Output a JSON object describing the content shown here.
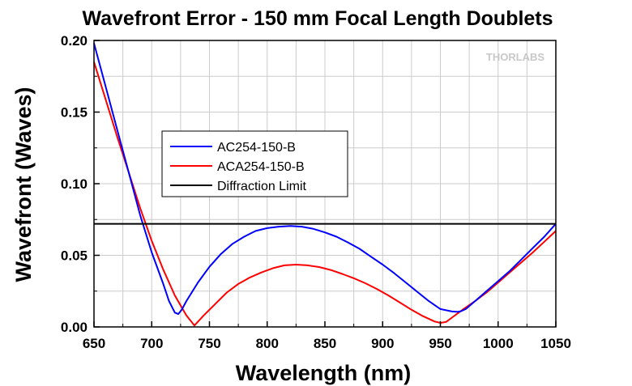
{
  "chart_data": {
    "type": "line",
    "title": "Wavefront Error - 150 mm Focal Length Doublets",
    "xlabel": "Wavelength (nm)",
    "ylabel": "Wavefront (Waves)",
    "xlim": [
      650,
      1050
    ],
    "ylim": [
      0,
      0.2
    ],
    "x_ticks": [
      650,
      700,
      750,
      800,
      850,
      900,
      950,
      1000,
      1050
    ],
    "x_tick_labels": [
      "650",
      "700",
      "750",
      "800",
      "850",
      "900",
      "950",
      "1000",
      "1050"
    ],
    "y_ticks": [
      0,
      0.05,
      0.1,
      0.15,
      0.2
    ],
    "y_tick_labels": [
      "0.00",
      "0.05",
      "0.10",
      "0.15",
      "0.20"
    ],
    "grid": true,
    "legend_position": "center-left",
    "watermark": "THORLABS",
    "series": [
      {
        "name": "AC254-150-B",
        "color": "#0000ff",
        "x": [
          650,
          660,
          670,
          680,
          690,
          700,
          710,
          715,
          720,
          723,
          726,
          730,
          740,
          750,
          760,
          770,
          780,
          790,
          800,
          810,
          820,
          830,
          840,
          850,
          860,
          870,
          880,
          890,
          900,
          910,
          920,
          930,
          940,
          950,
          960,
          965,
          968,
          972,
          980,
          990,
          1000,
          1010,
          1020,
          1030,
          1040,
          1050
        ],
        "y": [
          0.198,
          0.168,
          0.138,
          0.108,
          0.078,
          0.052,
          0.03,
          0.018,
          0.01,
          0.009,
          0.012,
          0.018,
          0.031,
          0.042,
          0.051,
          0.058,
          0.063,
          0.067,
          0.069,
          0.07,
          0.0705,
          0.07,
          0.0685,
          0.066,
          0.063,
          0.059,
          0.0545,
          0.049,
          0.0435,
          0.0375,
          0.031,
          0.0245,
          0.018,
          0.0125,
          0.0108,
          0.0105,
          0.011,
          0.0125,
          0.018,
          0.025,
          0.032,
          0.039,
          0.047,
          0.055,
          0.063,
          0.072
        ]
      },
      {
        "name": "ACA254-150-B",
        "color": "#ff0000",
        "x": [
          650,
          660,
          670,
          680,
          690,
          700,
          710,
          720,
          730,
          737,
          745,
          755,
          765,
          775,
          785,
          795,
          805,
          815,
          825,
          835,
          845,
          855,
          865,
          875,
          885,
          895,
          905,
          915,
          925,
          935,
          945,
          950,
          955,
          960,
          970,
          980,
          990,
          1000,
          1010,
          1020,
          1030,
          1040,
          1050
        ],
        "y": [
          0.185,
          0.159,
          0.133,
          0.108,
          0.083,
          0.06,
          0.04,
          0.022,
          0.008,
          0.001,
          0.008,
          0.016,
          0.024,
          0.03,
          0.0345,
          0.038,
          0.041,
          0.043,
          0.0435,
          0.043,
          0.0418,
          0.0398,
          0.037,
          0.034,
          0.0305,
          0.0265,
          0.022,
          0.017,
          0.012,
          0.0075,
          0.0038,
          0.0028,
          0.0035,
          0.0065,
          0.0125,
          0.018,
          0.024,
          0.031,
          0.038,
          0.045,
          0.052,
          0.0595,
          0.067
        ]
      },
      {
        "name": "Diffraction Limit",
        "color": "#000000",
        "x": [
          650,
          1050
        ],
        "y": [
          0.072,
          0.072
        ]
      }
    ]
  }
}
